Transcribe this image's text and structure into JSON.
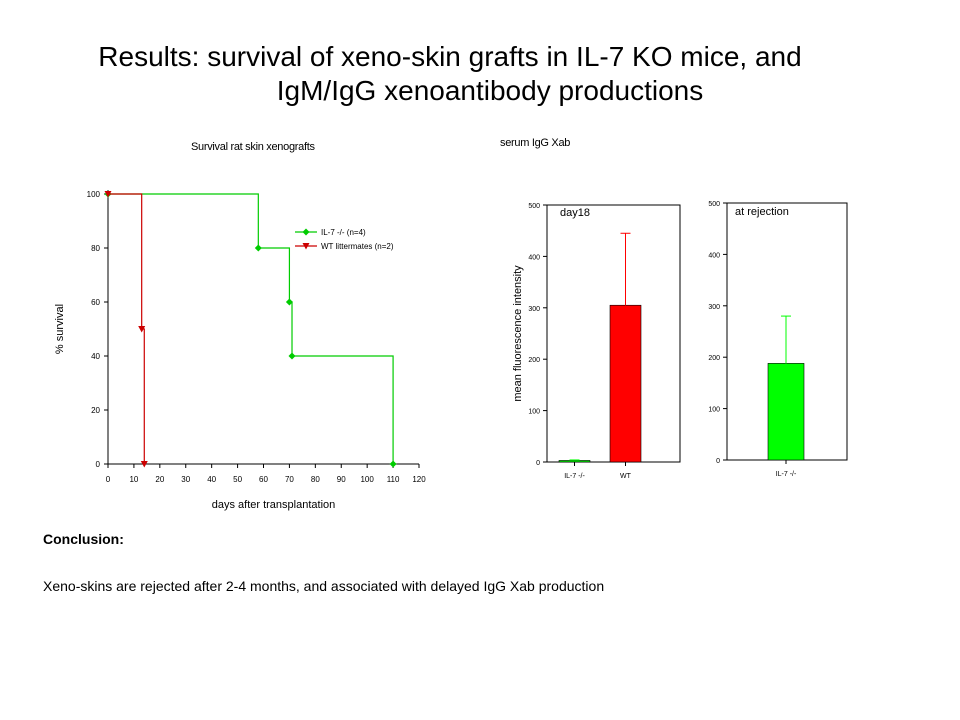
{
  "slide": {
    "title_line1": "Results:  survival of xeno-skin grafts in IL-7 KO mice, and",
    "title_line2": "IgM/IgG xenoantibody productions",
    "conclusion_heading": "Conclusion:",
    "conclusion_text": "Xeno-skins are rejected after 2-4 months, and associated with delayed IgG Xab production"
  },
  "chart_data": [
    {
      "type": "line",
      "step": true,
      "title": "Survival rat skin xenografts",
      "xlabel": "days after transplantation",
      "ylabel": "% survival",
      "xlim": [
        0,
        120
      ],
      "ylim": [
        0,
        100
      ],
      "xticks": [
        0,
        10,
        20,
        30,
        40,
        50,
        60,
        70,
        80,
        90,
        100,
        110,
        120
      ],
      "yticks": [
        0,
        20,
        40,
        60,
        80,
        100
      ],
      "legend_position": "right",
      "series": [
        {
          "name": "IL-7 -/- (n=4)",
          "color": "#00cc00",
          "marker": "diamond",
          "x": [
            0,
            58,
            70,
            71,
            110
          ],
          "y": [
            100,
            80,
            60,
            40,
            0
          ]
        },
        {
          "name": "WT littermates (n=2)",
          "color": "#cc0000",
          "marker": "triangle-down",
          "x": [
            0,
            13,
            14
          ],
          "y": [
            100,
            50,
            0
          ]
        }
      ]
    },
    {
      "type": "bar",
      "title": "serum IgG Xab",
      "annotation": "day18",
      "ylabel": "mean fluorescence intensity",
      "categories": [
        "IL-7 -/-",
        "WT"
      ],
      "values": [
        3,
        305
      ],
      "errors": [
        1,
        140
      ],
      "colors": [
        "#00ff00",
        "#ff0000"
      ],
      "ylim": [
        0,
        500
      ],
      "yticks": [
        0,
        100,
        200,
        300,
        400,
        500
      ]
    },
    {
      "type": "bar",
      "title": "",
      "annotation": "at rejection",
      "ylabel": "",
      "categories": [
        "IL-7 -/-"
      ],
      "values": [
        188
      ],
      "errors": [
        92
      ],
      "colors": [
        "#00ff00"
      ],
      "ylim": [
        0,
        500
      ],
      "yticks": [
        0,
        100,
        200,
        300,
        400,
        500
      ]
    }
  ]
}
